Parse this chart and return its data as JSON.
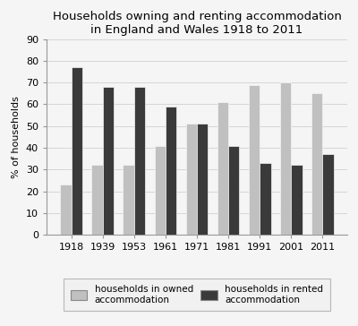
{
  "title": "Households owning and renting accommodation\nin England and Wales 1918 to 2011",
  "years": [
    "1918",
    "1939",
    "1953",
    "1961",
    "1971",
    "1981",
    "1991",
    "2001",
    "2011"
  ],
  "owned": [
    23,
    32,
    32,
    41,
    51,
    61,
    69,
    70,
    65
  ],
  "rented": [
    77,
    68,
    68,
    59,
    51,
    41,
    33,
    32,
    37
  ],
  "owned_color": "#c0c0c0",
  "rented_color": "#3a3a3a",
  "ylabel": "% of households",
  "ylim": [
    0,
    90
  ],
  "yticks": [
    0,
    10,
    20,
    30,
    40,
    50,
    60,
    70,
    80,
    90
  ],
  "legend_owned": "households in owned\naccommodation",
  "legend_rented": "households in rented\naccommodation",
  "title_fontsize": 9.5,
  "axis_label_fontsize": 8,
  "tick_fontsize": 8,
  "legend_fontsize": 7.5,
  "bar_width": 0.35,
  "background_color": "#f5f5f5",
  "grid_color": "#d0d0d0"
}
